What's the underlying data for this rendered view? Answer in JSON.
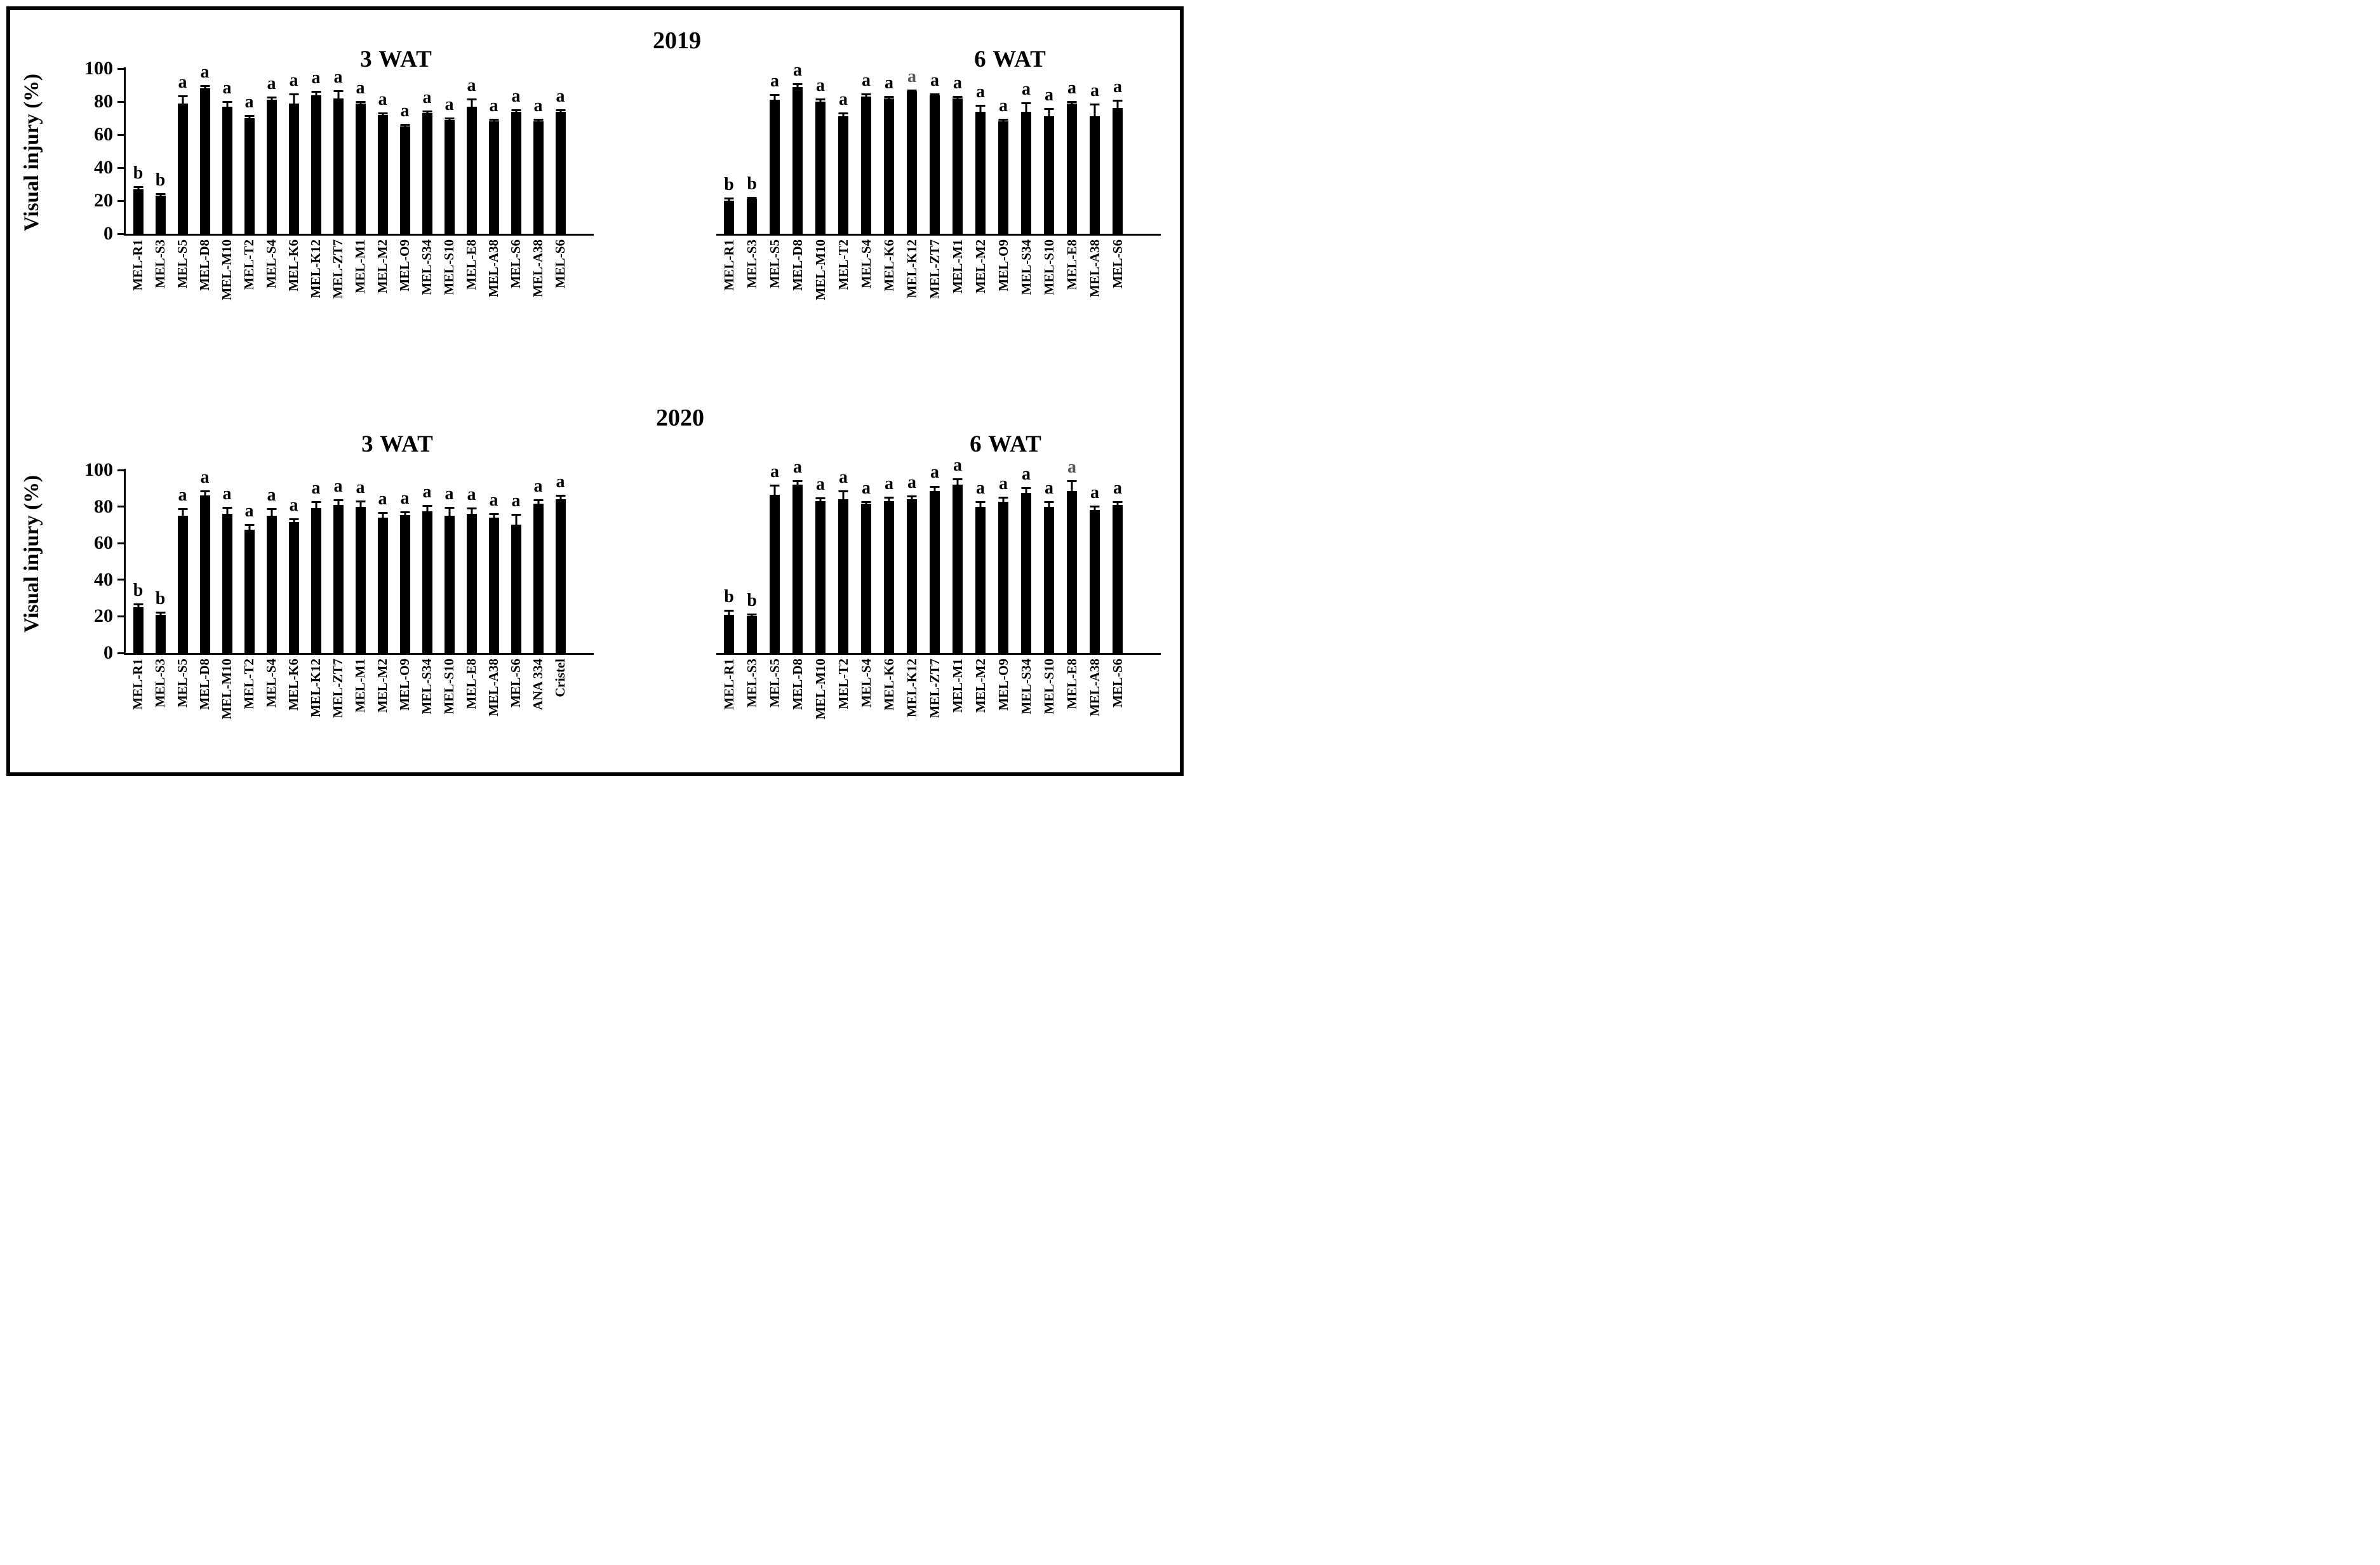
{
  "figure": {
    "row_titles": [
      "2019",
      "2020"
    ],
    "ylabel": "Visual injury (%)",
    "y_ticks": [
      100,
      80,
      60,
      40,
      20,
      0
    ],
    "colors": {
      "bar": "#000000",
      "letter": "#000000",
      "letter_muted": "#595959",
      "border": "#000000"
    }
  },
  "chart_data": [
    {
      "type": "bar",
      "year": "2019",
      "title": "3 WAT",
      "ylabel": "Visual injury (%)",
      "ylim": [
        0,
        100
      ],
      "grid": false,
      "legend": false,
      "show_y_axis": true,
      "bars": [
        {
          "label": "MEL-R1",
          "value": 27,
          "err": 2,
          "letter": "b"
        },
        {
          "label": "MEL-S3",
          "value": 23,
          "err": 1.5,
          "letter": "b"
        },
        {
          "label": "MEL-S5",
          "value": 79,
          "err": 5,
          "letter": "a"
        },
        {
          "label": "MEL-D8",
          "value": 88,
          "err": 2,
          "letter": "a"
        },
        {
          "label": "MEL-M10",
          "value": 77,
          "err": 3.5,
          "letter": "a"
        },
        {
          "label": "MEL-T2",
          "value": 70,
          "err": 2,
          "letter": "a"
        },
        {
          "label": "MEL-S4",
          "value": 81,
          "err": 2,
          "letter": "a"
        },
        {
          "label": "MEL-K6",
          "value": 79,
          "err": 6,
          "letter": "a"
        },
        {
          "label": "MEL-K12",
          "value": 84,
          "err": 2.5,
          "letter": "a"
        },
        {
          "label": "MEL-ZT7",
          "value": 82,
          "err": 5,
          "letter": "a"
        },
        {
          "label": "MEL-M1",
          "value": 79,
          "err": 1.5,
          "letter": "a"
        },
        {
          "label": "MEL-M2",
          "value": 72,
          "err": 1.5,
          "letter": "a"
        },
        {
          "label": "MEL-O9",
          "value": 65,
          "err": 1.5,
          "letter": "a"
        },
        {
          "label": "MEL-S34",
          "value": 73,
          "err": 1.5,
          "letter": "a"
        },
        {
          "label": "MEL-S10",
          "value": 69,
          "err": 1.5,
          "letter": "a"
        },
        {
          "label": "MEL-E8",
          "value": 77,
          "err": 5,
          "letter": "a"
        },
        {
          "label": "MEL-A38",
          "value": 68,
          "err": 1.5,
          "letter": "a"
        },
        {
          "label": "MEL-S6",
          "value": 74,
          "err": 1.5,
          "letter": "a"
        },
        {
          "label": "MEL-A38",
          "value": 68,
          "err": 1.5,
          "letter": "a"
        },
        {
          "label": "MEL-S6",
          "value": 74,
          "err": 1.5,
          "letter": "a"
        }
      ]
    },
    {
      "type": "bar",
      "year": "2019",
      "title": "6 WAT",
      "ylabel": "Visual injury (%)",
      "ylim": [
        0,
        100
      ],
      "grid": false,
      "legend": false,
      "show_y_axis": false,
      "bars": [
        {
          "label": "MEL-R1",
          "value": 20,
          "err": 2,
          "letter": "b"
        },
        {
          "label": "MEL-S3",
          "value": 21,
          "err": 1.5,
          "letter": "b"
        },
        {
          "label": "MEL-S5",
          "value": 81,
          "err": 3.5,
          "letter": "a"
        },
        {
          "label": "MEL-D8",
          "value": 89,
          "err": 2,
          "letter": "a"
        },
        {
          "label": "MEL-M10",
          "value": 80,
          "err": 2,
          "letter": "a"
        },
        {
          "label": "MEL-T2",
          "value": 71,
          "err": 2.5,
          "letter": "a"
        },
        {
          "label": "MEL-S4",
          "value": 83,
          "err": 2,
          "letter": "a"
        },
        {
          "label": "MEL-K6",
          "value": 82,
          "err": 1.5,
          "letter": "a"
        },
        {
          "label": "MEL-K12",
          "value": 86,
          "err": 1.5,
          "letter": "a",
          "muted": true
        },
        {
          "label": "MEL-ZT7",
          "value": 84,
          "err": 1,
          "letter": "a"
        },
        {
          "label": "MEL-M1",
          "value": 82,
          "err": 1.5,
          "letter": "a"
        },
        {
          "label": "MEL-M2",
          "value": 74,
          "err": 4,
          "letter": "a"
        },
        {
          "label": "MEL-O9",
          "value": 68,
          "err": 1.5,
          "letter": "a"
        },
        {
          "label": "MEL-S34",
          "value": 74,
          "err": 5.5,
          "letter": "a"
        },
        {
          "label": "MEL-S10",
          "value": 71,
          "err": 5,
          "letter": "a"
        },
        {
          "label": "MEL-E8",
          "value": 79,
          "err": 1.5,
          "letter": "a"
        },
        {
          "label": "MEL-A38",
          "value": 71,
          "err": 8,
          "letter": "a"
        },
        {
          "label": "MEL-S6",
          "value": 76,
          "err": 5,
          "letter": "a"
        }
      ]
    },
    {
      "type": "bar",
      "year": "2020",
      "title": "3 WAT",
      "ylabel": "Visual injury (%)",
      "ylim": [
        0,
        100
      ],
      "grid": false,
      "legend": false,
      "show_y_axis": true,
      "bars": [
        {
          "label": "MEL-R1",
          "value": 25,
          "err": 2,
          "letter": "b"
        },
        {
          "label": "MEL-S3",
          "value": 21,
          "err": 1.5,
          "letter": "b"
        },
        {
          "label": "MEL-S5",
          "value": 75,
          "err": 4,
          "letter": "a"
        },
        {
          "label": "MEL-D8",
          "value": 86,
          "err": 3,
          "letter": "a"
        },
        {
          "label": "MEL-M10",
          "value": 76,
          "err": 4,
          "letter": "a"
        },
        {
          "label": "MEL-T2",
          "value": 67.5,
          "err": 3,
          "letter": "a"
        },
        {
          "label": "MEL-S4",
          "value": 75,
          "err": 4,
          "letter": "a"
        },
        {
          "label": "MEL-K6",
          "value": 71.5,
          "err": 2,
          "letter": "a"
        },
        {
          "label": "MEL-K12",
          "value": 79,
          "err": 4,
          "letter": "a"
        },
        {
          "label": "MEL-ZT7",
          "value": 81,
          "err": 3,
          "letter": "a"
        },
        {
          "label": "MEL-M1",
          "value": 80,
          "err": 3.5,
          "letter": "a"
        },
        {
          "label": "MEL-M2",
          "value": 74,
          "err": 3,
          "letter": "a"
        },
        {
          "label": "MEL-O9",
          "value": 75.5,
          "err": 2,
          "letter": "a"
        },
        {
          "label": "MEL-S34",
          "value": 77.5,
          "err": 3.5,
          "letter": "a"
        },
        {
          "label": "MEL-S10",
          "value": 75,
          "err": 5,
          "letter": "a"
        },
        {
          "label": "MEL-E8",
          "value": 76,
          "err": 3.5,
          "letter": "a"
        },
        {
          "label": "MEL-A38",
          "value": 74,
          "err": 2.5,
          "letter": "a"
        },
        {
          "label": "MEL-S6",
          "value": 70,
          "err": 6,
          "letter": "a"
        },
        {
          "label": "ANA 334",
          "value": 81.5,
          "err": 2.5,
          "letter": "a"
        },
        {
          "label": "Cristel",
          "value": 84,
          "err": 2.5,
          "letter": "a"
        }
      ]
    },
    {
      "type": "bar",
      "year": "2020",
      "title": "6 WAT",
      "ylabel": "Visual injury (%)",
      "ylim": [
        0,
        100
      ],
      "grid": false,
      "legend": false,
      "show_y_axis": false,
      "bars": [
        {
          "label": "MEL-R1",
          "value": 21,
          "err": 2.5,
          "letter": "b"
        },
        {
          "label": "MEL-S3",
          "value": 20,
          "err": 1.5,
          "letter": "b"
        },
        {
          "label": "MEL-S5",
          "value": 86.5,
          "err": 5.5,
          "letter": "a"
        },
        {
          "label": "MEL-D8",
          "value": 92,
          "err": 2.5,
          "letter": "a"
        },
        {
          "label": "MEL-M10",
          "value": 83,
          "err": 2,
          "letter": "a"
        },
        {
          "label": "MEL-T2",
          "value": 84,
          "err": 5,
          "letter": "a"
        },
        {
          "label": "MEL-S4",
          "value": 81.5,
          "err": 1.5,
          "letter": "a"
        },
        {
          "label": "MEL-K6",
          "value": 83,
          "err": 2.5,
          "letter": "a"
        },
        {
          "label": "MEL-K12",
          "value": 84,
          "err": 2,
          "letter": "a"
        },
        {
          "label": "MEL-ZT7",
          "value": 88.5,
          "err": 3,
          "letter": "a"
        },
        {
          "label": "MEL-M1",
          "value": 92,
          "err": 3.5,
          "letter": "a"
        },
        {
          "label": "MEL-M2",
          "value": 80,
          "err": 3,
          "letter": "a"
        },
        {
          "label": "MEL-O9",
          "value": 82.5,
          "err": 3,
          "letter": "a"
        },
        {
          "label": "MEL-S34",
          "value": 87.5,
          "err": 3,
          "letter": "a"
        },
        {
          "label": "MEL-S10",
          "value": 80,
          "err": 3,
          "letter": "a"
        },
        {
          "label": "MEL-E8",
          "value": 88.5,
          "err": 6,
          "letter": "a",
          "muted": true
        },
        {
          "label": "MEL-A38",
          "value": 78,
          "err": 2.5,
          "letter": "a"
        },
        {
          "label": "MEL-S6",
          "value": 81,
          "err": 2,
          "letter": "a"
        }
      ]
    }
  ]
}
